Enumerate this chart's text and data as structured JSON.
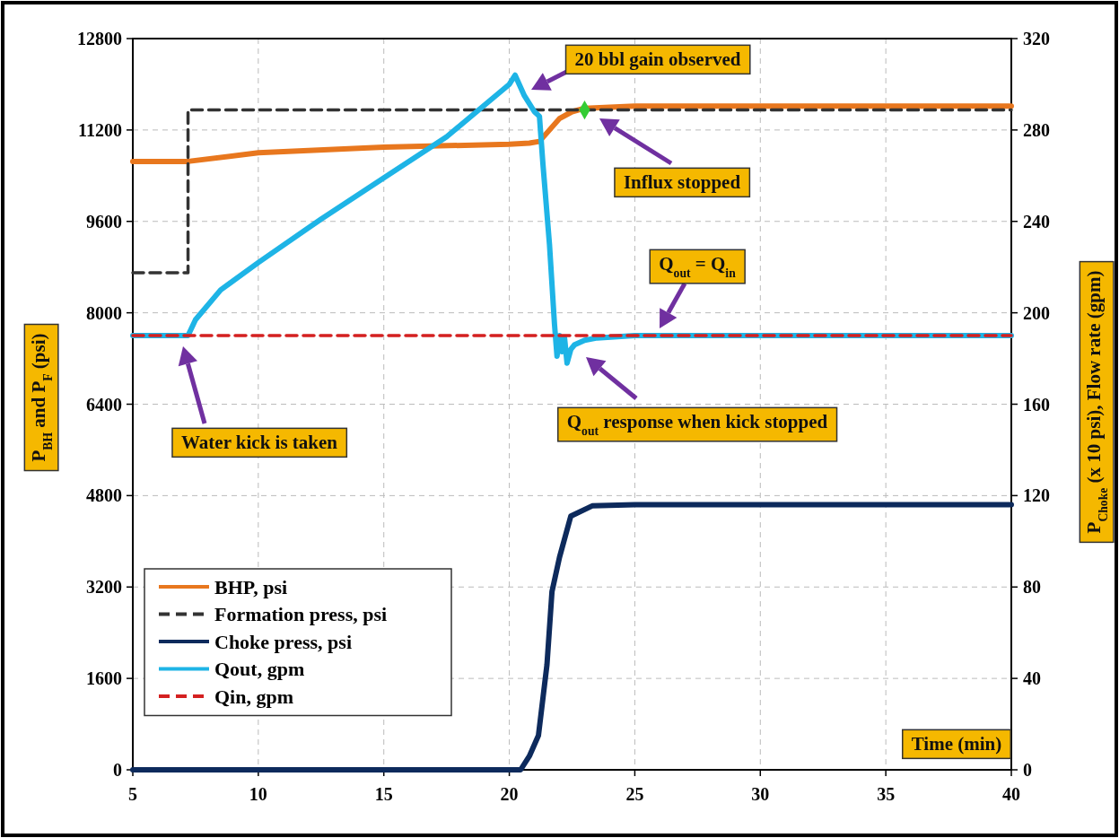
{
  "chart_data": {
    "type": "line",
    "xlabel": "Time (min)",
    "ylabel": "P$_{BH}$ and P$_{F}$ (psi)",
    "y2label": "P$_{Choke}$ (x 10 psi), Flow rate (gpm)",
    "xlim": [
      5,
      40
    ],
    "xticks": [
      5,
      10,
      15,
      20,
      25,
      30,
      35,
      40
    ],
    "ylim": [
      0,
      12800
    ],
    "yticks": [
      0,
      1600,
      3200,
      4800,
      6400,
      8000,
      9600,
      11200,
      12800
    ],
    "y2lim": [
      0,
      320
    ],
    "y2ticks": [
      0,
      40,
      80,
      120,
      160,
      200,
      240,
      280,
      320
    ],
    "grid": true,
    "legend": "bottom left",
    "line_style": "solid",
    "marker": "none",
    "series": [
      {
        "name": "BHP, psi",
        "color": "#e8771e",
        "x": [
          5,
          7.2,
          10,
          15,
          20,
          20.8,
          21.2,
          21.6,
          22,
          22.5,
          23,
          25,
          40
        ],
        "values": [
          10650,
          10650,
          10800,
          10900,
          10950,
          10970,
          11000,
          11200,
          11400,
          11520,
          11580,
          11620,
          11620
        ]
      },
      {
        "name": "Formation press, psi",
        "type": "step",
        "line_style": "dashed",
        "color": "#333333",
        "x": [
          5,
          7.2,
          40
        ],
        "values": [
          8700,
          11550,
          11550
        ]
      },
      {
        "name": "Choke press, psi",
        "axis": "y2",
        "color": "#0d2a5c",
        "x": [
          5,
          20.3,
          20.45,
          20.8,
          21.16,
          21.5,
          21.7,
          22,
          22.45,
          23.3,
          25,
          40
        ],
        "values": [
          0,
          0,
          0,
          6,
          15,
          46,
          78,
          93,
          111,
          115.5,
          116,
          116
        ]
      },
      {
        "name": "Qout, gpm",
        "axis": "y2",
        "color": "#1eb4e6",
        "x": [
          5,
          7.2,
          7.5,
          8.5,
          10,
          12.5,
          15,
          17.5,
          20,
          20.23,
          20.6,
          21,
          21.2,
          21.34,
          21.6,
          21.8,
          21.9,
          22,
          22.1,
          22.2,
          22.3,
          22.45,
          22.6,
          23,
          23.5,
          25,
          40
        ],
        "values": [
          190,
          190,
          197,
          210,
          222,
          241,
          259,
          277,
          300,
          304,
          295,
          288,
          286,
          265,
          230,
          195,
          181,
          190,
          183,
          189,
          178,
          184,
          186,
          188,
          189,
          190,
          190
        ]
      },
      {
        "name": "Qin, gpm",
        "axis": "y2",
        "line_style": "dashed",
        "color": "#d42020",
        "x": [
          5,
          40
        ],
        "values": [
          190,
          190
        ]
      },
      {
        "type": "scatter",
        "marker": "diamond",
        "color": "#33cc33",
        "x": [
          23
        ],
        "values": [
          11550
        ]
      }
    ],
    "annotations": [
      "20 bbl gain observed",
      "Influx stopped",
      "Q$_{out}$ = Q$_{in}$",
      "Q$_{out}$ response when kick stopped",
      "Water kick is taken"
    ]
  }
}
